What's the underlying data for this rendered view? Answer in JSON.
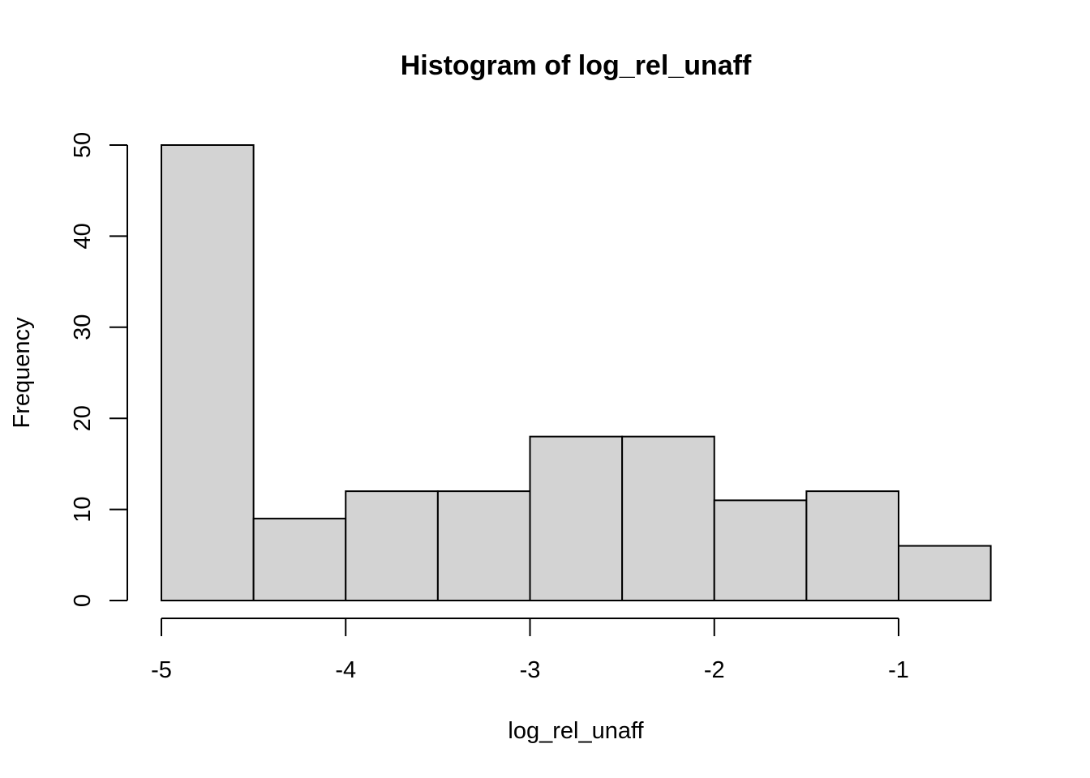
{
  "chart_data": {
    "type": "histogram",
    "title": "Histogram of log_rel_unaff",
    "xlabel": "log_rel_unaff",
    "ylabel": "Frequency",
    "bins": [
      {
        "start": -5.0,
        "end": -4.5,
        "count": 50
      },
      {
        "start": -4.5,
        "end": -4.0,
        "count": 9
      },
      {
        "start": -4.0,
        "end": -3.5,
        "count": 12
      },
      {
        "start": -3.5,
        "end": -3.0,
        "count": 12
      },
      {
        "start": -3.0,
        "end": -2.5,
        "count": 18
      },
      {
        "start": -2.5,
        "end": -2.0,
        "count": 18
      },
      {
        "start": -2.0,
        "end": -1.5,
        "count": 11
      },
      {
        "start": -1.5,
        "end": -1.0,
        "count": 12
      },
      {
        "start": -1.0,
        "end": -0.5,
        "count": 6
      }
    ],
    "xlim": [
      -5,
      -0.5
    ],
    "ylim": [
      0,
      50
    ],
    "xticks": [
      -5,
      -4,
      -3,
      -2,
      -1
    ],
    "xtick_labels": [
      "-5",
      "-4",
      "-3",
      "-2",
      "-1"
    ],
    "yticks": [
      0,
      10,
      20,
      30,
      40,
      50
    ],
    "ytick_labels": [
      "0",
      "10",
      "20",
      "30",
      "40",
      "50"
    ],
    "bar_color": "#d3d3d3",
    "edge_color": "#000000",
    "grid": false,
    "legend": "none"
  }
}
